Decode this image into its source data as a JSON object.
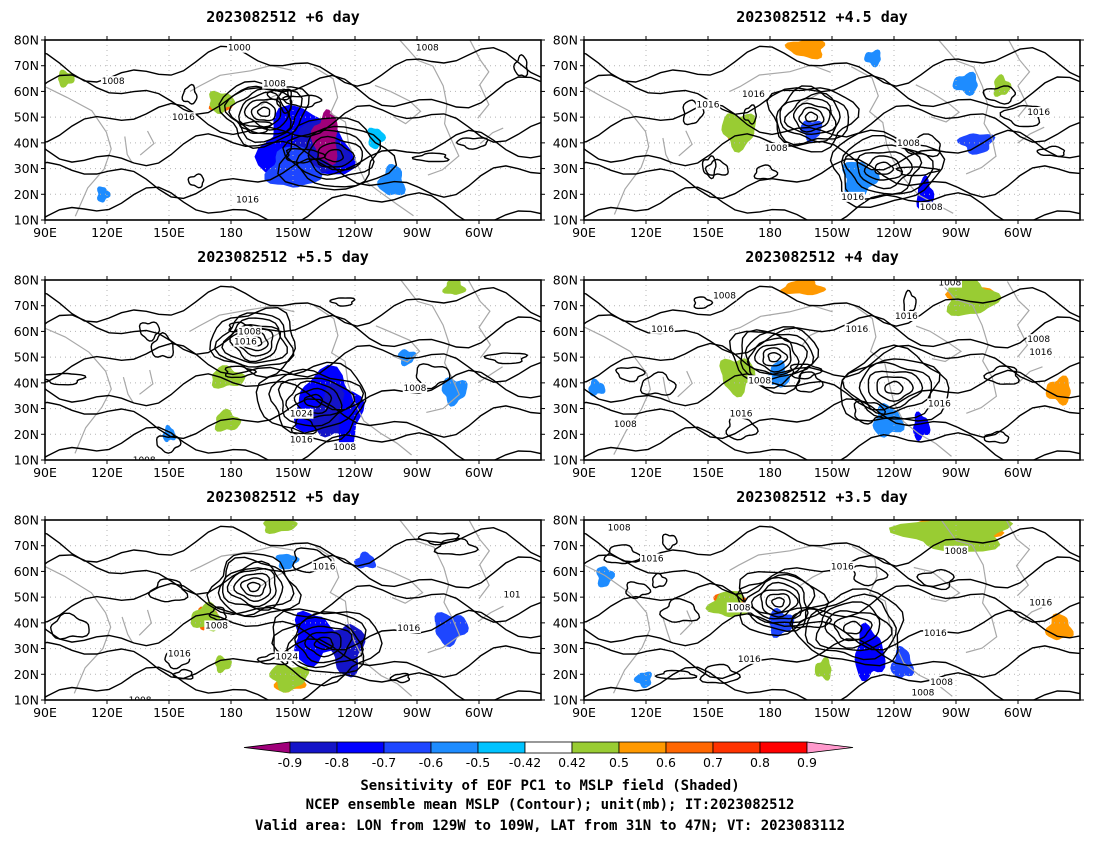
{
  "panels": [
    {
      "title": "2023082512  +6 day",
      "contour_labels": [
        {
          "text": "1000",
          "lon": 184,
          "lat": 77
        },
        {
          "text": "1008",
          "lon": 123,
          "lat": 64
        },
        {
          "text": "1008",
          "lon": 201,
          "lat": 63
        },
        {
          "text": "1016",
          "lon": 157,
          "lat": 50
        },
        {
          "text": "1008",
          "lon": 275,
          "lat": 77
        },
        {
          "text": "1016",
          "lon": 188,
          "lat": 18
        }
      ]
    },
    {
      "title": "2023082512  +4.5 day",
      "contour_labels": [
        {
          "text": "1016",
          "lon": 150,
          "lat": 55
        },
        {
          "text": "1016",
          "lon": 172,
          "lat": 59
        },
        {
          "text": "1008",
          "lon": 183,
          "lat": 38
        },
        {
          "text": "1008",
          "lon": 247,
          "lat": 40
        },
        {
          "text": "1016",
          "lon": 220,
          "lat": 19
        },
        {
          "text": "1008",
          "lon": 258,
          "lat": 15
        },
        {
          "text": "1016",
          "lon": 310,
          "lat": 52
        }
      ]
    },
    {
      "title": "2023082512  +5.5 day",
      "contour_labels": [
        {
          "text": "1008",
          "lon": 189,
          "lat": 60
        },
        {
          "text": "1016",
          "lon": 187,
          "lat": 56
        },
        {
          "text": "1008",
          "lon": 269,
          "lat": 38
        },
        {
          "text": "1024",
          "lon": 214,
          "lat": 28
        },
        {
          "text": "1016",
          "lon": 214,
          "lat": 18
        },
        {
          "text": "1008",
          "lon": 235,
          "lat": 15
        },
        {
          "text": "1008",
          "lon": 138,
          "lat": 10
        }
      ]
    },
    {
      "title": "2023082512  +4 day",
      "contour_labels": [
        {
          "text": "1008",
          "lon": 158,
          "lat": 74
        },
        {
          "text": "1008",
          "lon": 267,
          "lat": 79
        },
        {
          "text": "1016",
          "lon": 128,
          "lat": 61
        },
        {
          "text": "1016",
          "lon": 222,
          "lat": 61
        },
        {
          "text": "1016",
          "lon": 246,
          "lat": 66
        },
        {
          "text": "1008",
          "lon": 175,
          "lat": 41
        },
        {
          "text": "1016",
          "lon": 166,
          "lat": 28
        },
        {
          "text": "1008",
          "lon": 110,
          "lat": 24
        },
        {
          "text": "1016",
          "lon": 262,
          "lat": 32
        },
        {
          "text": "1008",
          "lon": 310,
          "lat": 57
        },
        {
          "text": "1016",
          "lon": 311,
          "lat": 52
        }
      ]
    },
    {
      "title": "2023082512  +5 day",
      "contour_labels": [
        {
          "text": "1016",
          "lon": 225,
          "lat": 62
        },
        {
          "text": "1008",
          "lon": 173,
          "lat": 39
        },
        {
          "text": "1016",
          "lon": 155,
          "lat": 28
        },
        {
          "text": "1024",
          "lon": 207,
          "lat": 27
        },
        {
          "text": "1016",
          "lon": 266,
          "lat": 38
        },
        {
          "text": "101",
          "lon": 316,
          "lat": 51
        },
        {
          "text": "1008",
          "lon": 136,
          "lat": 10
        }
      ]
    },
    {
      "title": "2023082512  +3.5 day",
      "contour_labels": [
        {
          "text": "1008",
          "lon": 107,
          "lat": 77
        },
        {
          "text": "1016",
          "lon": 123,
          "lat": 65
        },
        {
          "text": "1008",
          "lon": 270,
          "lat": 68
        },
        {
          "text": "1016",
          "lon": 215,
          "lat": 62
        },
        {
          "text": "1008",
          "lon": 165,
          "lat": 46
        },
        {
          "text": "1016",
          "lon": 311,
          "lat": 48
        },
        {
          "text": "1016",
          "lon": 260,
          "lat": 36
        },
        {
          "text": "1016",
          "lon": 170,
          "lat": 26
        },
        {
          "text": "1008",
          "lon": 254,
          "lat": 13
        },
        {
          "text": "1008",
          "lon": 263,
          "lat": 17
        }
      ]
    }
  ],
  "x_ticks": [
    "90E",
    "120E",
    "150E",
    "180",
    "150W",
    "120W",
    "90W",
    "60W"
  ],
  "y_ticks": [
    "10N",
    "20N",
    "30N",
    "40N",
    "50N",
    "60N",
    "70N",
    "80N"
  ],
  "colorbar": {
    "labels": [
      "-0.9",
      "-0.8",
      "-0.7",
      "-0.6",
      "-0.5",
      "-0.42",
      "0.42",
      "0.5",
      "0.6",
      "0.7",
      "0.8",
      "0.9"
    ],
    "colors": [
      "#a0007a",
      "#1414c8",
      "#0000ff",
      "#1e46ff",
      "#1e8cff",
      "#00c3ff",
      "#ffffff",
      "#99cc33",
      "#ff9900",
      "#ff6600",
      "#ff3300",
      "#ff0000",
      "#ff99cc"
    ]
  },
  "caption": {
    "line1": "Sensitivity of EOF PC1 to MSLP field (Shaded)",
    "line2": "NCEP ensemble mean MSLP (Contour); unit(mb); IT:2023082512",
    "line3": "Valid area: LON from 129W to 109W, LAT from 31N to 47N; VT: 2023083112"
  }
}
